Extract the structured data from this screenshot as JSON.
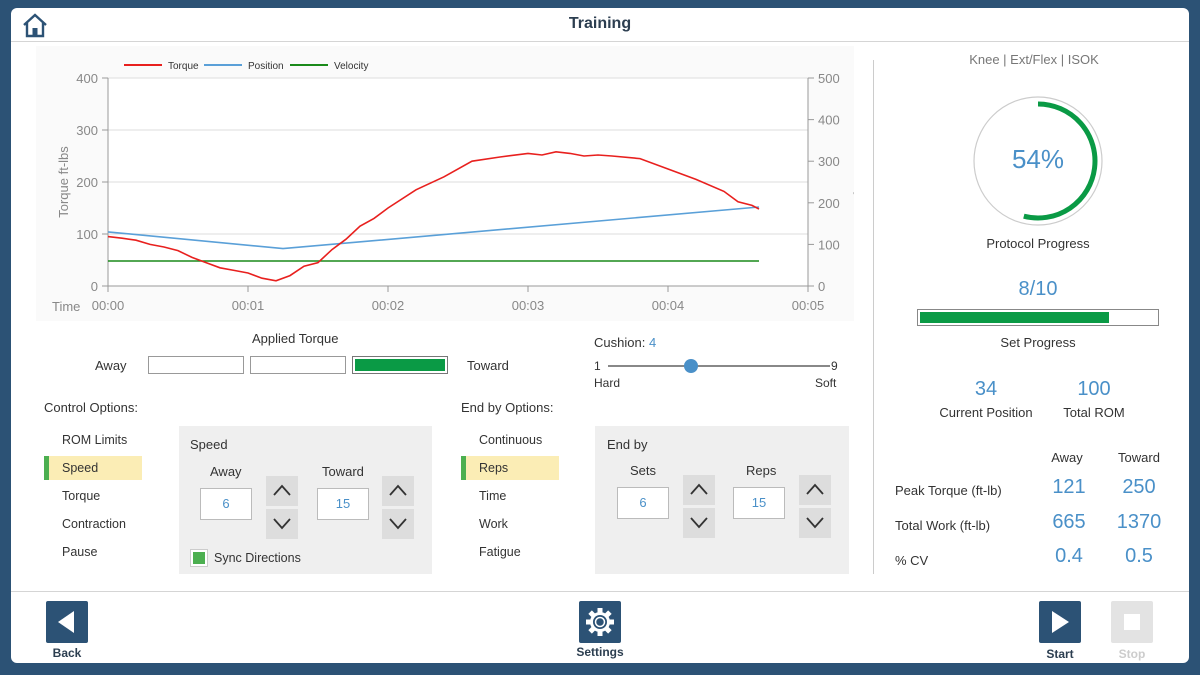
{
  "header": {
    "title": "Training"
  },
  "context": "Knee | Ext/Flex | ISOK",
  "chart_data": {
    "type": "line",
    "legend": [
      "Torque",
      "Position",
      "Velocity"
    ],
    "series_colors": [
      "#e8201e",
      "#5aa0d8",
      "#1a8a1a"
    ],
    "y_left_label": "Torque ft-lbs",
    "y_right_label": "Velocity",
    "x_label": "Time",
    "y_left_range": [
      0,
      400
    ],
    "y_left_ticks": [
      "0",
      "100",
      "200",
      "300",
      "400"
    ],
    "y_right_range": [
      0,
      500
    ],
    "y_right_ticks": [
      "0",
      "100",
      "200",
      "300",
      "400",
      "500"
    ],
    "x_range": [
      0,
      5
    ],
    "x_ticks": [
      "00:00",
      "00:01",
      "00:02",
      "00:03",
      "00:04",
      "00:05"
    ],
    "series": [
      {
        "name": "Torque",
        "axis": "left",
        "x": [
          0,
          0.1,
          0.2,
          0.3,
          0.4,
          0.5,
          0.6,
          0.7,
          0.8,
          0.9,
          1.0,
          1.1,
          1.2,
          1.3,
          1.4,
          1.5,
          1.6,
          1.7,
          1.8,
          1.9,
          2.0,
          2.2,
          2.4,
          2.6,
          2.8,
          3.0,
          3.1,
          3.2,
          3.3,
          3.4,
          3.5,
          3.6,
          3.8,
          4.0,
          4.2,
          4.4,
          4.5,
          4.6,
          4.65
        ],
        "values": [
          95,
          92,
          88,
          80,
          75,
          68,
          55,
          45,
          35,
          30,
          25,
          15,
          10,
          20,
          38,
          45,
          70,
          90,
          115,
          130,
          150,
          185,
          210,
          240,
          248,
          255,
          252,
          258,
          255,
          250,
          252,
          250,
          245,
          225,
          205,
          182,
          162,
          155,
          148
        ]
      },
      {
        "name": "Position",
        "axis": "right",
        "x": [
          0,
          1.25,
          4.65
        ],
        "values": [
          130,
          90,
          190
        ]
      },
      {
        "name": "Velocity",
        "axis": "right",
        "x": [
          0,
          4.65
        ],
        "values": [
          60,
          60
        ]
      }
    ]
  },
  "applied_torque": {
    "title": "Applied Torque",
    "away": "Away",
    "toward": "Toward",
    "active": 3
  },
  "cushion": {
    "label": "Cushion:",
    "value": "4",
    "min": "1",
    "max": "9",
    "min_label": "Hard",
    "max_label": "Soft",
    "level": 4
  },
  "control_options": {
    "title": "Control Options:",
    "items": [
      "ROM Limits",
      "Speed",
      "Torque",
      "Contraction",
      "Pause"
    ],
    "selected": 1
  },
  "speed_panel": {
    "title": "Speed",
    "away_label": "Away",
    "toward_label": "Toward",
    "away_value": "6",
    "toward_value": "15",
    "sync_label": "Sync Directions"
  },
  "end_by_options": {
    "title": "End by Options:",
    "items": [
      "Continuous",
      "Reps",
      "Time",
      "Work",
      "Fatigue"
    ],
    "selected": 1
  },
  "end_by_panel": {
    "title": "End by",
    "sets_label": "Sets",
    "reps_label": "Reps",
    "sets_value": "6",
    "reps_value": "15"
  },
  "protocol": {
    "percent_text": "54%",
    "percent": 0.54,
    "label": "Protocol Progress"
  },
  "set_progress": {
    "text": "8/10",
    "fraction": 0.8,
    "label": "Set Progress"
  },
  "position": {
    "current": "34",
    "current_label": "Current Position",
    "total": "100",
    "total_label": "Total ROM"
  },
  "stats": {
    "headers": [
      "Away",
      "Toward"
    ],
    "rows": [
      {
        "label": "Peak Torque (ft-lb)",
        "away": "121",
        "toward": "250"
      },
      {
        "label": "Total Work (ft-lb)",
        "away": "665",
        "toward": "1370"
      },
      {
        "label": "% CV",
        "away": "0.4",
        "toward": "0.5"
      }
    ]
  },
  "footer": {
    "back": "Back",
    "settings": "Settings",
    "start": "Start",
    "stop": "Stop"
  }
}
